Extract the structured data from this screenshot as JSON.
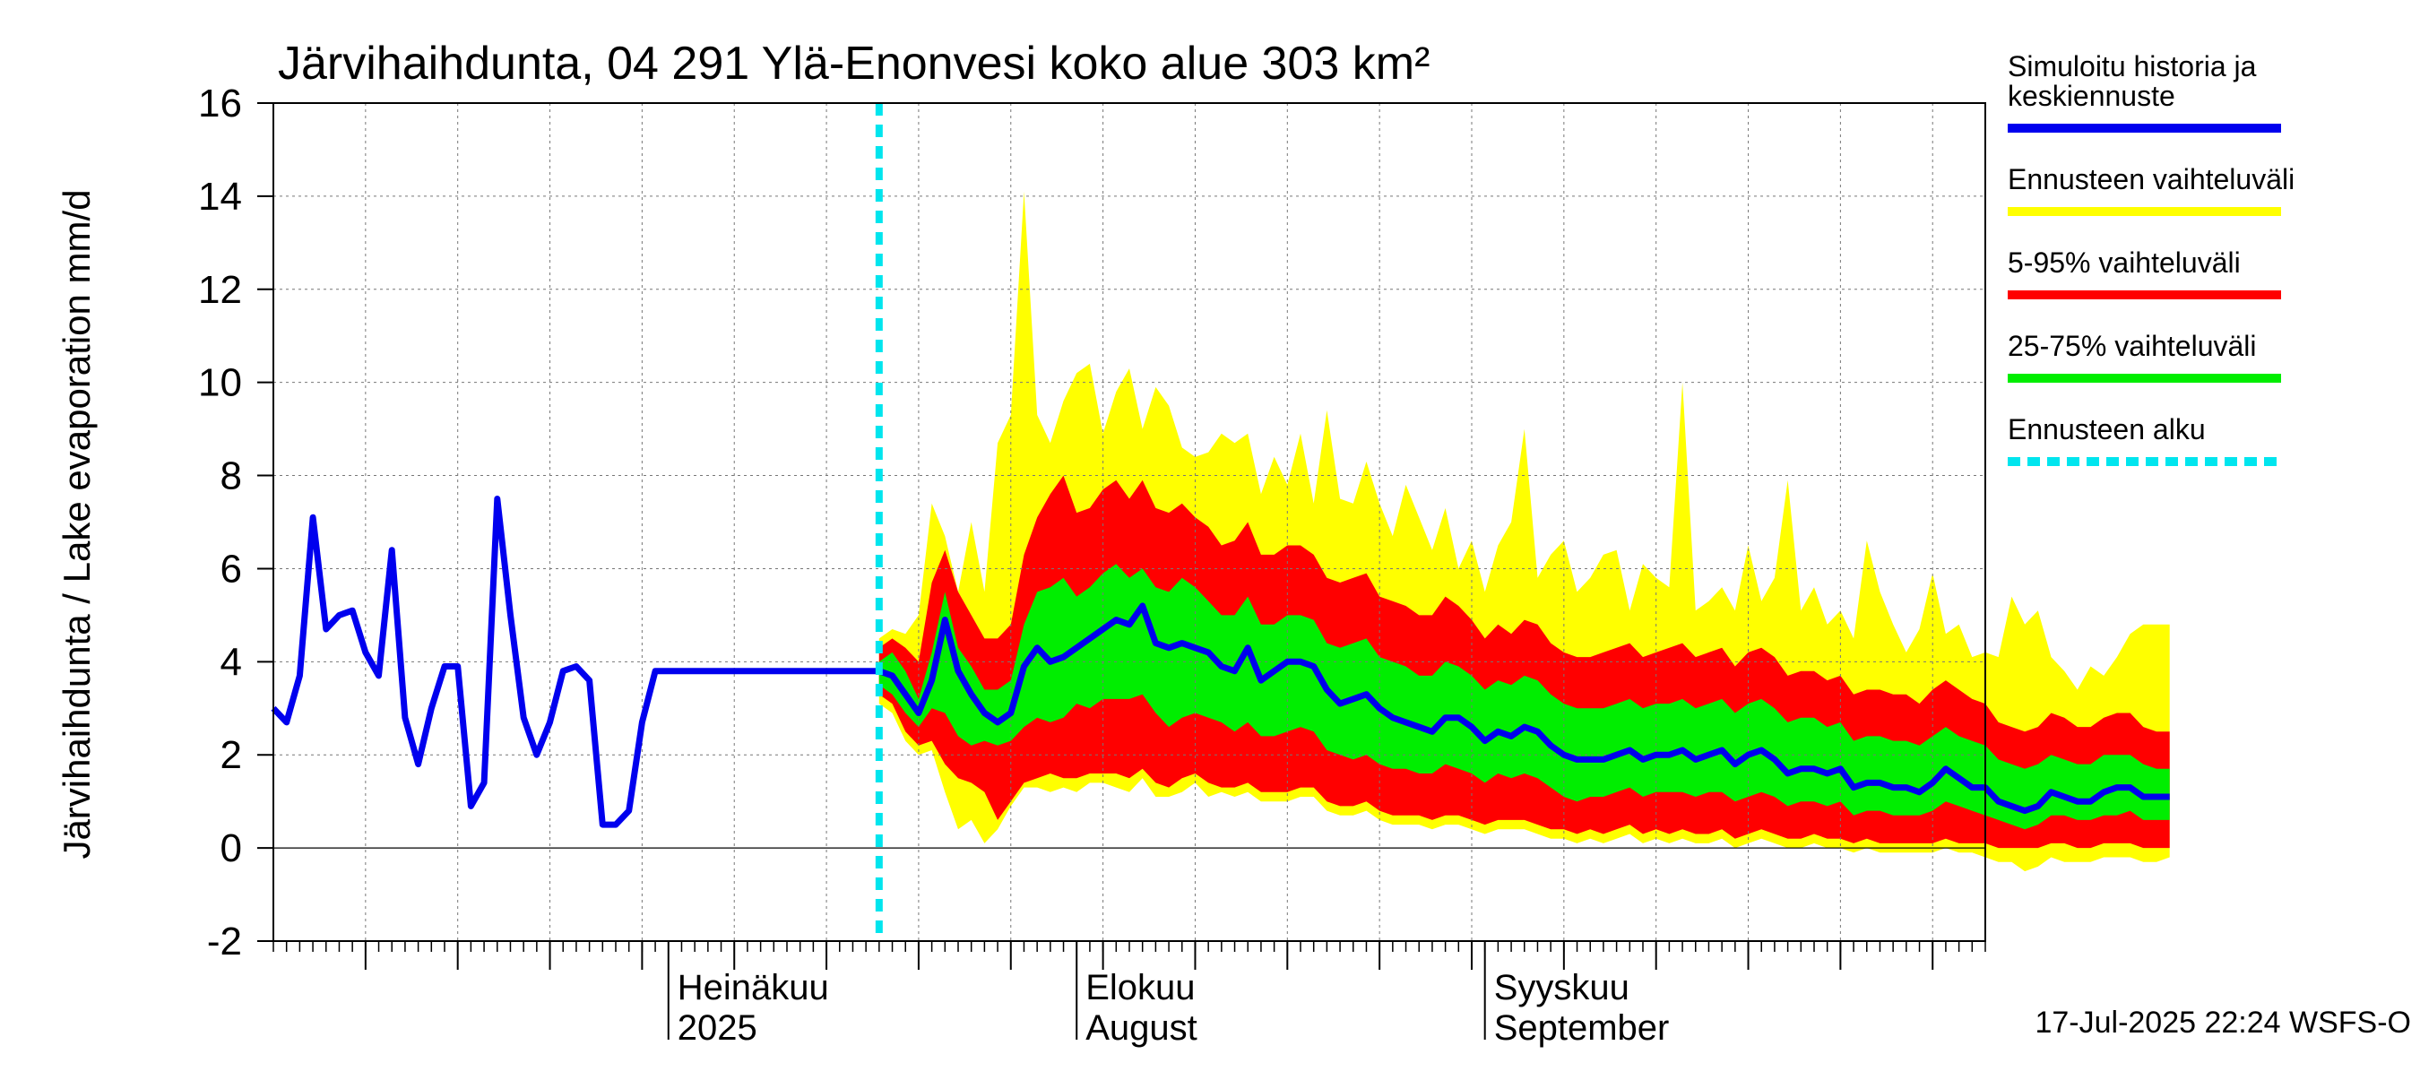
{
  "chart_data": {
    "type": "area",
    "title": "Järvihaihdunta, 04 291 Ylä-Enonvesi koko alue 303 km²",
    "ylabel": "Järvihaihdunta / Lake evaporation   mm/d",
    "xlabel": "",
    "ylim": [
      -2,
      16
    ],
    "y_ticks": [
      -2,
      0,
      2,
      4,
      6,
      8,
      10,
      12,
      14,
      16
    ],
    "x_start": "2025-06-01",
    "x_end": "2025-10-09",
    "month_labels": [
      {
        "line1": "Heinäkuu",
        "line2": "2025",
        "date": "2025-07-01"
      },
      {
        "line1": "Elokuu",
        "line2": "August",
        "date": "2025-08-01"
      },
      {
        "line1": "Syyskuu",
        "line2": "September",
        "date": "2025-09-01"
      }
    ],
    "forecast_start": "2025-07-17",
    "footer": "17-Jul-2025 22:24 WSFS-O",
    "grid": true,
    "legend_position": "right",
    "legend": [
      {
        "label_line1": "Simuloitu historia ja",
        "label_line2": "keskiennuste",
        "color": "#0000ee",
        "style": "solid"
      },
      {
        "label_line1": "Ennusteen vaihteluväli",
        "label_line2": "",
        "color": "#ffff00",
        "style": "solid"
      },
      {
        "label_line1": "5-95% vaihteluväli",
        "label_line2": "",
        "color": "#ff0000",
        "style": "solid"
      },
      {
        "label_line1": "25-75% vaihteluväli",
        "label_line2": "",
        "color": "#00ee00",
        "style": "solid"
      },
      {
        "label_line1": "Ennusteen alku",
        "label_line2": "",
        "color": "#00e5ee",
        "style": "dashed"
      }
    ],
    "history": {
      "name": "Simuloitu historia ja keskiennuste",
      "dates": [
        "2025-06-01",
        "2025-06-02",
        "2025-06-03",
        "2025-06-04",
        "2025-06-05",
        "2025-06-06",
        "2025-06-07",
        "2025-06-08",
        "2025-06-09",
        "2025-06-10",
        "2025-06-11",
        "2025-06-12",
        "2025-06-13",
        "2025-06-14",
        "2025-06-15",
        "2025-06-16",
        "2025-06-17",
        "2025-06-18",
        "2025-06-19",
        "2025-06-20",
        "2025-06-21",
        "2025-06-22",
        "2025-06-23",
        "2025-06-24",
        "2025-06-25",
        "2025-06-26",
        "2025-06-27",
        "2025-06-28",
        "2025-06-29",
        "2025-06-30",
        "2025-07-01",
        "2025-07-02",
        "2025-07-03",
        "2025-07-04",
        "2025-07-05",
        "2025-07-06",
        "2025-07-07",
        "2025-07-08",
        "2025-07-09",
        "2025-07-10",
        "2025-07-11",
        "2025-07-12",
        "2025-07-13",
        "2025-07-14",
        "2025-07-15",
        "2025-07-16",
        "2025-07-17"
      ],
      "values": [
        3.0,
        2.7,
        3.7,
        7.1,
        4.7,
        5.0,
        5.1,
        4.2,
        3.7,
        6.4,
        2.8,
        1.8,
        3.0,
        3.9,
        3.9,
        0.9,
        1.4,
        7.5,
        5.0,
        2.8,
        2.0,
        2.7,
        3.8,
        3.9,
        3.6,
        0.5,
        0.5,
        0.8,
        2.7,
        3.8,
        3.8,
        3.8,
        3.8,
        3.8,
        3.8,
        3.8,
        3.8,
        3.8,
        3.8,
        3.8,
        3.8,
        3.8,
        3.8,
        3.8,
        3.8,
        3.8,
        3.8
      ]
    },
    "forecast": {
      "dates_start": "2025-07-17",
      "step_days": 1,
      "median": [
        3.8,
        3.7,
        3.3,
        2.9,
        3.6,
        4.9,
        3.8,
        3.3,
        2.9,
        2.7,
        2.9,
        3.9,
        4.3,
        4.0,
        4.1,
        4.3,
        4.5,
        4.7,
        4.9,
        4.8,
        5.2,
        4.4,
        4.3,
        4.4,
        4.3,
        4.2,
        3.9,
        3.8,
        4.3,
        3.6,
        3.8,
        4.0,
        4.0,
        3.9,
        3.4,
        3.1,
        3.2,
        3.3,
        3.0,
        2.8,
        2.7,
        2.6,
        2.5,
        2.8,
        2.8,
        2.6,
        2.3,
        2.5,
        2.4,
        2.6,
        2.5,
        2.2,
        2.0,
        1.9,
        1.9,
        1.9,
        2.0,
        2.1,
        1.9,
        2.0,
        2.0,
        2.1,
        1.9,
        2.0,
        2.1,
        1.8,
        2.0,
        2.1,
        1.9,
        1.6,
        1.7,
        1.7,
        1.6,
        1.7,
        1.3,
        1.4,
        1.4,
        1.3,
        1.3,
        1.2,
        1.4,
        1.7,
        1.5,
        1.3,
        1.3,
        1.0,
        0.9,
        0.8,
        0.9,
        1.2,
        1.1,
        1.0,
        1.0,
        1.2,
        1.3,
        1.3,
        1.1,
        1.1,
        1.1
      ],
      "p25": [
        3.5,
        3.3,
        2.9,
        2.6,
        3.0,
        2.9,
        2.4,
        2.2,
        2.3,
        2.2,
        2.3,
        2.6,
        2.8,
        2.7,
        2.8,
        3.1,
        3.0,
        3.2,
        3.2,
        3.2,
        3.3,
        2.9,
        2.6,
        2.8,
        2.9,
        2.8,
        2.7,
        2.5,
        2.7,
        2.4,
        2.4,
        2.5,
        2.6,
        2.5,
        2.1,
        2.0,
        1.9,
        2.0,
        1.8,
        1.7,
        1.7,
        1.6,
        1.6,
        1.8,
        1.7,
        1.6,
        1.4,
        1.6,
        1.5,
        1.6,
        1.5,
        1.3,
        1.1,
        1.0,
        1.1,
        1.1,
        1.2,
        1.3,
        1.1,
        1.2,
        1.2,
        1.2,
        1.1,
        1.2,
        1.2,
        1.0,
        1.1,
        1.2,
        1.1,
        0.9,
        1.0,
        1.0,
        0.9,
        1.0,
        0.7,
        0.8,
        0.8,
        0.7,
        0.7,
        0.7,
        0.8,
        1.0,
        0.9,
        0.8,
        0.7,
        0.6,
        0.5,
        0.4,
        0.5,
        0.7,
        0.7,
        0.6,
        0.6,
        0.7,
        0.7,
        0.8,
        0.6,
        0.6,
        0.6
      ],
      "p75": [
        4.0,
        4.2,
        3.8,
        3.2,
        4.2,
        5.5,
        4.3,
        3.9,
        3.4,
        3.4,
        3.6,
        4.8,
        5.5,
        5.6,
        5.8,
        5.4,
        5.6,
        5.9,
        6.1,
        5.8,
        6.0,
        5.6,
        5.5,
        5.8,
        5.6,
        5.3,
        5.0,
        5.0,
        5.4,
        4.8,
        4.8,
        5.0,
        5.0,
        4.9,
        4.4,
        4.3,
        4.4,
        4.5,
        4.1,
        4.0,
        3.9,
        3.7,
        3.7,
        4.0,
        3.9,
        3.7,
        3.4,
        3.6,
        3.5,
        3.7,
        3.6,
        3.3,
        3.1,
        3.0,
        3.0,
        3.0,
        3.1,
        3.2,
        3.0,
        3.1,
        3.1,
        3.2,
        3.0,
        3.1,
        3.2,
        2.9,
        3.1,
        3.2,
        3.0,
        2.7,
        2.8,
        2.8,
        2.6,
        2.7,
        2.3,
        2.4,
        2.4,
        2.3,
        2.3,
        2.2,
        2.4,
        2.6,
        2.4,
        2.3,
        2.2,
        1.9,
        1.8,
        1.7,
        1.8,
        2.0,
        1.9,
        1.8,
        1.8,
        2.0,
        2.0,
        2.0,
        1.8,
        1.7,
        1.7
      ],
      "p05": [
        3.3,
        3.1,
        2.5,
        2.2,
        2.3,
        1.8,
        1.5,
        1.4,
        1.2,
        0.6,
        1.0,
        1.4,
        1.5,
        1.6,
        1.5,
        1.5,
        1.6,
        1.6,
        1.6,
        1.5,
        1.7,
        1.4,
        1.3,
        1.5,
        1.6,
        1.4,
        1.3,
        1.3,
        1.4,
        1.2,
        1.2,
        1.2,
        1.3,
        1.3,
        1.0,
        0.9,
        0.9,
        1.0,
        0.8,
        0.7,
        0.7,
        0.7,
        0.6,
        0.7,
        0.7,
        0.6,
        0.5,
        0.6,
        0.6,
        0.6,
        0.5,
        0.4,
        0.4,
        0.3,
        0.4,
        0.3,
        0.4,
        0.5,
        0.3,
        0.4,
        0.3,
        0.4,
        0.3,
        0.3,
        0.4,
        0.2,
        0.3,
        0.4,
        0.3,
        0.2,
        0.2,
        0.3,
        0.2,
        0.2,
        0.1,
        0.2,
        0.1,
        0.1,
        0.1,
        0.1,
        0.1,
        0.2,
        0.1,
        0.1,
        0.1,
        0.0,
        0.0,
        0.0,
        0.0,
        0.1,
        0.1,
        0.0,
        0.0,
        0.1,
        0.1,
        0.1,
        0.0,
        0.0,
        0.0
      ],
      "p95": [
        4.3,
        4.5,
        4.3,
        4.0,
        5.7,
        6.4,
        5.5,
        5.0,
        4.5,
        4.5,
        4.8,
        6.3,
        7.1,
        7.6,
        8.0,
        7.2,
        7.3,
        7.7,
        7.9,
        7.5,
        7.9,
        7.3,
        7.2,
        7.4,
        7.1,
        6.9,
        6.5,
        6.6,
        7.0,
        6.3,
        6.3,
        6.5,
        6.5,
        6.3,
        5.8,
        5.7,
        5.8,
        5.9,
        5.4,
        5.3,
        5.2,
        5.0,
        5.0,
        5.4,
        5.2,
        4.9,
        4.5,
        4.8,
        4.6,
        4.9,
        4.8,
        4.4,
        4.2,
        4.1,
        4.1,
        4.2,
        4.3,
        4.4,
        4.1,
        4.2,
        4.3,
        4.4,
        4.1,
        4.2,
        4.3,
        3.9,
        4.2,
        4.3,
        4.1,
        3.7,
        3.8,
        3.8,
        3.6,
        3.7,
        3.3,
        3.4,
        3.4,
        3.3,
        3.3,
        3.1,
        3.4,
        3.6,
        3.4,
        3.2,
        3.1,
        2.7,
        2.6,
        2.5,
        2.6,
        2.9,
        2.8,
        2.6,
        2.6,
        2.8,
        2.9,
        2.9,
        2.6,
        2.5,
        2.5
      ],
      "min": [
        3.1,
        2.9,
        2.3,
        2.0,
        2.1,
        1.2,
        0.4,
        0.6,
        0.1,
        0.4,
        0.9,
        1.3,
        1.3,
        1.2,
        1.3,
        1.2,
        1.4,
        1.4,
        1.3,
        1.2,
        1.5,
        1.1,
        1.1,
        1.2,
        1.4,
        1.1,
        1.2,
        1.1,
        1.2,
        1.0,
        1.0,
        1.0,
        1.1,
        1.1,
        0.8,
        0.7,
        0.7,
        0.8,
        0.6,
        0.5,
        0.5,
        0.5,
        0.4,
        0.5,
        0.5,
        0.4,
        0.3,
        0.4,
        0.4,
        0.4,
        0.3,
        0.2,
        0.2,
        0.1,
        0.2,
        0.1,
        0.2,
        0.3,
        0.1,
        0.2,
        0.1,
        0.2,
        0.1,
        0.1,
        0.2,
        0.0,
        0.1,
        0.2,
        0.1,
        0.0,
        0.0,
        0.1,
        0.0,
        0.0,
        -0.1,
        0.0,
        -0.1,
        -0.1,
        -0.1,
        -0.1,
        -0.1,
        0.0,
        -0.1,
        -0.1,
        -0.2,
        -0.3,
        -0.3,
        -0.5,
        -0.4,
        -0.2,
        -0.3,
        -0.3,
        -0.3,
        -0.2,
        -0.2,
        -0.2,
        -0.3,
        -0.3,
        -0.2
      ],
      "max": [
        4.5,
        4.7,
        4.6,
        5.0,
        7.4,
        6.7,
        5.5,
        7.0,
        5.5,
        8.7,
        9.3,
        14.1,
        9.3,
        8.7,
        9.6,
        10.2,
        10.4,
        8.9,
        9.8,
        10.3,
        9.0,
        9.9,
        9.5,
        8.6,
        8.4,
        8.5,
        8.9,
        8.7,
        8.9,
        7.6,
        8.4,
        7.8,
        8.9,
        7.4,
        9.4,
        7.5,
        7.4,
        8.3,
        7.4,
        6.7,
        7.8,
        7.1,
        6.4,
        7.3,
        6.0,
        6.6,
        5.5,
        6.5,
        7.0,
        9.0,
        5.8,
        6.3,
        6.6,
        5.5,
        5.8,
        6.3,
        6.4,
        5.1,
        6.1,
        5.8,
        5.6,
        10.0,
        5.1,
        5.3,
        5.6,
        5.1,
        6.5,
        5.3,
        5.8,
        7.9,
        5.1,
        5.6,
        4.8,
        5.1,
        4.5,
        6.6,
        5.5,
        4.8,
        4.2,
        4.7,
        5.9,
        4.6,
        4.8,
        4.1,
        4.2,
        4.1,
        5.4,
        4.8,
        5.1,
        4.1,
        3.8,
        3.4,
        3.9,
        3.7,
        4.1,
        4.6,
        4.8,
        4.8,
        4.8
      ]
    }
  }
}
